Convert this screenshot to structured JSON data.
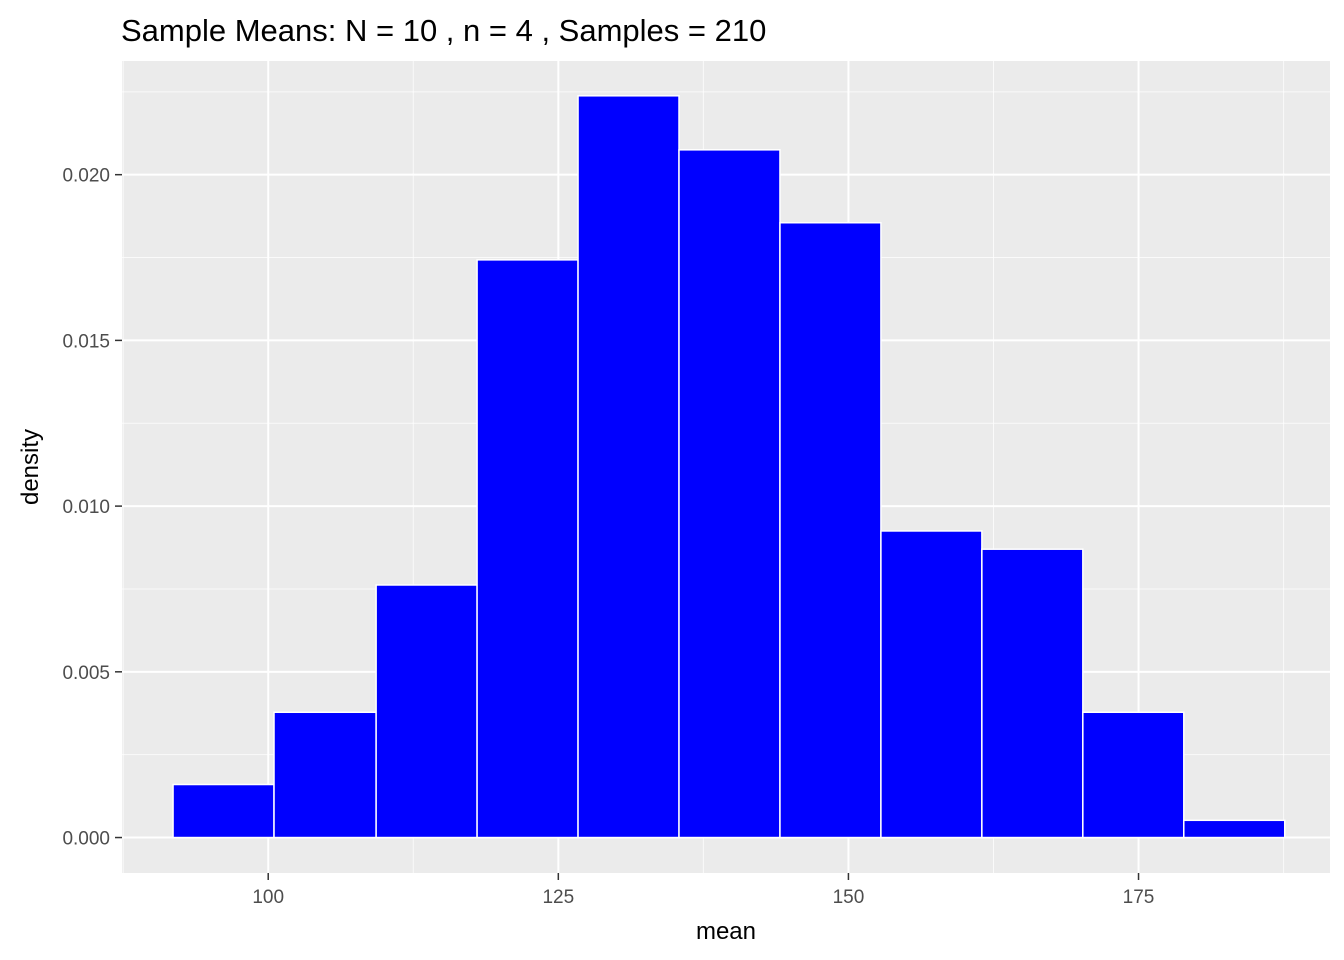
{
  "chart_data": {
    "type": "bar",
    "subtype": "histogram",
    "title": "Sample Means: N =  10 , n =  4 , Samples =  210",
    "xlabel": "mean",
    "ylabel": "density",
    "xlim": [
      87.4,
      191.5
    ],
    "ylim": [
      -0.00107,
      0.02343
    ],
    "x_ticks": [
      100,
      125,
      150,
      175
    ],
    "x_tick_labels": [
      "100",
      "125",
      "150",
      "175"
    ],
    "y_ticks": [
      0.0,
      0.005,
      0.01,
      0.015,
      0.02
    ],
    "y_tick_labels": [
      "0.000",
      "0.005",
      "0.010",
      "0.015",
      "0.020"
    ],
    "bins": [
      {
        "start": 91.8,
        "end": 100.5,
        "density": 0.0016
      },
      {
        "start": 100.5,
        "end": 109.3,
        "density": 0.00378
      },
      {
        "start": 109.3,
        "end": 118.0,
        "density": 0.00762
      },
      {
        "start": 118.0,
        "end": 126.7,
        "density": 0.01743
      },
      {
        "start": 126.7,
        "end": 135.4,
        "density": 0.02238
      },
      {
        "start": 135.4,
        "end": 144.1,
        "density": 0.02075
      },
      {
        "start": 144.1,
        "end": 152.8,
        "density": 0.01855
      },
      {
        "start": 152.8,
        "end": 161.5,
        "density": 0.00925
      },
      {
        "start": 161.5,
        "end": 170.2,
        "density": 0.0087
      },
      {
        "start": 170.2,
        "end": 178.9,
        "density": 0.00378
      },
      {
        "start": 178.9,
        "end": 187.6,
        "density": 0.00052
      }
    ],
    "bar_fill": "#0000ff",
    "bar_outline": "#ffffff",
    "panel_background": "#ebebeb",
    "grid": true,
    "legend": "none"
  }
}
